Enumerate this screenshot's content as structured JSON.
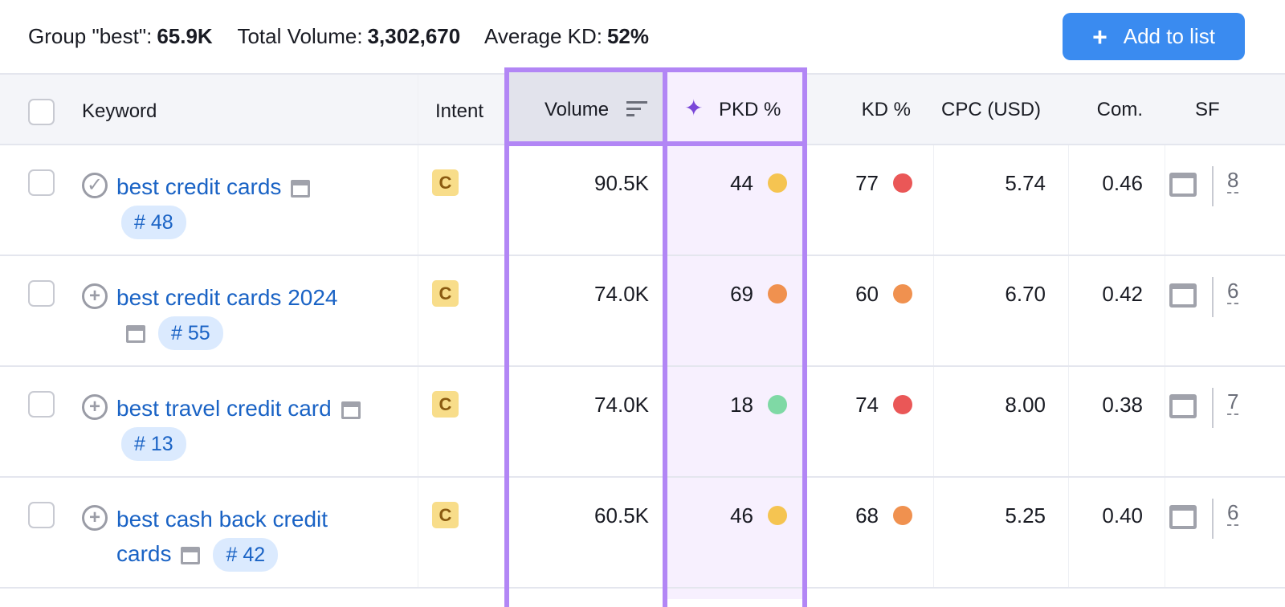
{
  "summary": {
    "group_label": "Group \"best\":",
    "group_value": "65.9K",
    "volume_label": "Total Volume:",
    "volume_value": "3,302,670",
    "kd_label": "Average KD:",
    "kd_value": "52%"
  },
  "add_button": {
    "label": "Add to list",
    "icon": "plus-icon",
    "color": "#3a8bf0"
  },
  "highlight_color": "#b286f5",
  "columns": {
    "keyword": "Keyword",
    "intent": "Intent",
    "volume": "Volume",
    "pkd": "PKD %",
    "kd": "KD %",
    "cpc": "CPC (USD)",
    "com": "Com.",
    "sf": "SF"
  },
  "rows": [
    {
      "status_icon": "check-circle-icon",
      "keyword": "best credit cards",
      "position": "# 48",
      "intent": "C",
      "volume": "90.5K",
      "pkd": "44",
      "pkd_color": "#f5c451",
      "kd": "77",
      "kd_color": "#ea5757",
      "cpc": "5.74",
      "com": "0.46",
      "sf": "8"
    },
    {
      "status_icon": "plus-circle-icon",
      "keyword": "best credit cards 2024",
      "position": "# 55",
      "intent": "C",
      "volume": "74.0K",
      "pkd": "69",
      "pkd_color": "#f0914f",
      "kd": "60",
      "kd_color": "#f0914f",
      "cpc": "6.70",
      "com": "0.42",
      "sf": "6"
    },
    {
      "status_icon": "plus-circle-icon",
      "keyword": "best travel credit card",
      "position": "# 13",
      "intent": "C",
      "volume": "74.0K",
      "pkd": "18",
      "pkd_color": "#7fd9a5",
      "kd": "74",
      "kd_color": "#ea5757",
      "cpc": "8.00",
      "com": "0.38",
      "sf": "7"
    },
    {
      "status_icon": "plus-circle-icon",
      "keyword": "best cash back credit cards",
      "position": "# 42",
      "intent": "C",
      "volume": "60.5K",
      "pkd": "46",
      "pkd_color": "#f5c451",
      "kd": "68",
      "kd_color": "#f0914f",
      "cpc": "5.25",
      "com": "0.40",
      "sf": "6"
    }
  ]
}
